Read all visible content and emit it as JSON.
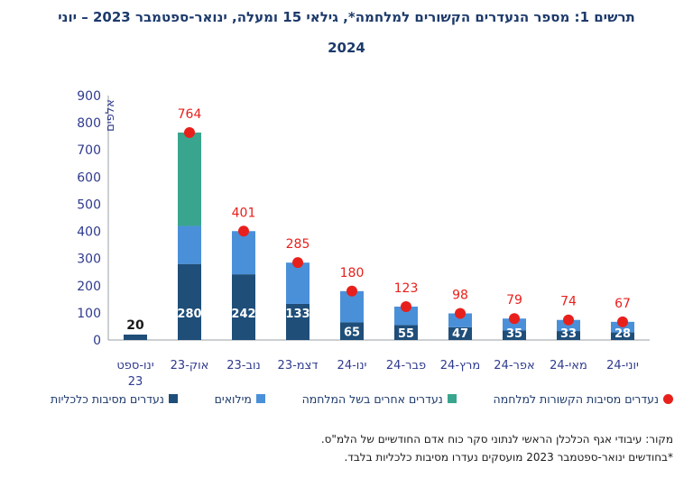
{
  "title_line1": "תרשים 1: מספר הנעדרים הקשורים למלחמה*, גילאי 15 ומעלה, ינואר-ספטמבר 2023 – יוני",
  "title_line2": "2024",
  "footnote_source": "מקור: עיבודי אגף הכלכלן הראשי לנתוני סקר כוח אדם החודשיים של הלמ\"ס.",
  "footnote_note": "*בחודשים ינואר-ספטמבר 2023 מועסקים נעדרו מסיבות כלכליות בלבד.",
  "colors": {
    "economic": "#1f4e79",
    "reserves": "#4a90d9",
    "other_war": "#3aa58e",
    "total_dot": "#e8201c",
    "total_label": "#e8201c",
    "axis_text": "#2f3a8f"
  },
  "chart_data": {
    "type": "bar",
    "stacked": true,
    "ylabel": "אלפים",
    "ylim": [
      0,
      900
    ],
    "yticks": [
      0,
      100,
      200,
      300,
      400,
      500,
      600,
      700,
      800,
      900
    ],
    "categories": [
      "ינו-ספט 23",
      "אוק-23",
      "נוב-23",
      "דצמ-23",
      "ינו-24",
      "פבר-24",
      "מרץ-24",
      "אפר-24",
      "מאי-24",
      "יוני-24"
    ],
    "series": [
      {
        "name": "נעדרים מסיבות כלכליות",
        "color_key": "economic",
        "values": [
          20,
          280,
          242,
          133,
          65,
          55,
          47,
          35,
          33,
          28
        ]
      },
      {
        "name": "מילואים",
        "color_key": "reserves",
        "values": [
          0,
          140,
          159,
          152,
          115,
          68,
          51,
          44,
          41,
          39
        ]
      },
      {
        "name": "נעדרים אחרים בשל המלחמה",
        "color_key": "other_war",
        "values": [
          0,
          344,
          0,
          0,
          0,
          0,
          0,
          0,
          0,
          0
        ]
      }
    ],
    "totals_series_name": "נעדרים מסיבות הקשורות למלחמה",
    "totals": [
      null,
      764,
      401,
      285,
      180,
      123,
      98,
      79,
      74,
      67
    ],
    "economic_label_color_dark": "#1a1a1a",
    "legend_position": "bottom",
    "grid": false
  }
}
